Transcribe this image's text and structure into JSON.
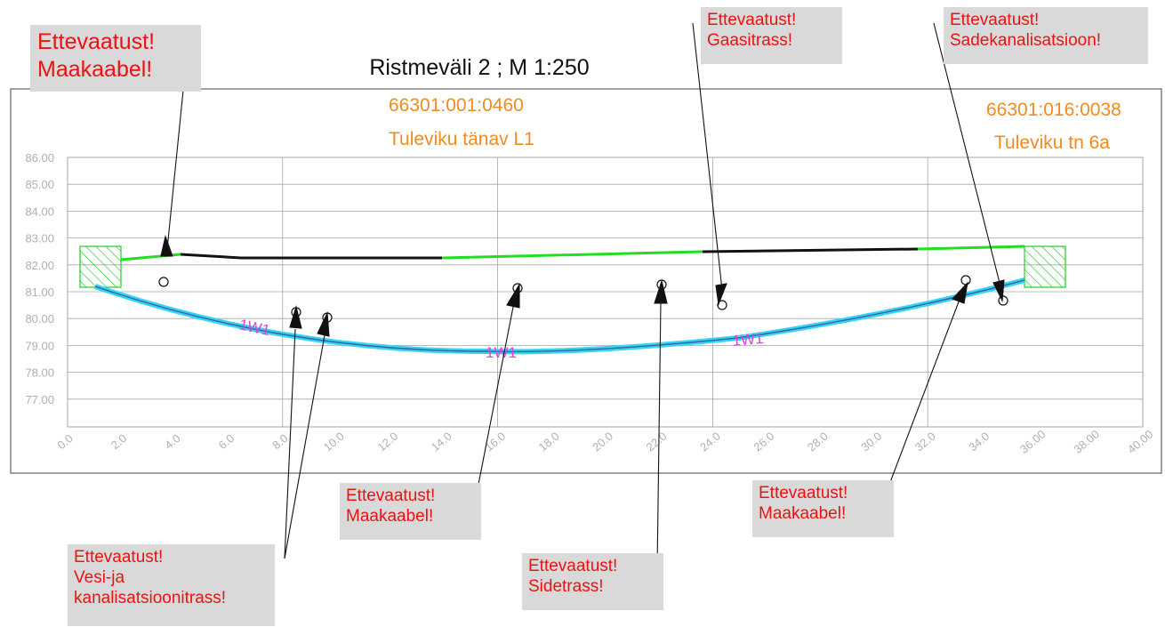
{
  "title": "Ristmeväli 2 ; M 1:250",
  "parcels": [
    {
      "id": "66301:001:0460",
      "street": "Tuleviku tänav L1"
    },
    {
      "id": "66301:016:0038",
      "street": "Tuleviku tn 6a"
    }
  ],
  "pipe_label": "1W1",
  "y_ticks": [
    "86.00",
    "85.00",
    "84.00",
    "83.00",
    "82.00",
    "81.00",
    "80.00",
    "79.00",
    "78.00",
    "77.00"
  ],
  "x_ticks": [
    "0.0",
    "2.0",
    "4.0",
    "6.0",
    "8.0",
    "10.0",
    "12.0",
    "14.0",
    "16.0",
    "18.0",
    "20.0",
    "22.0",
    "24.0",
    "26.0",
    "28.0",
    "30.0",
    "32.0",
    "34.0",
    "36.00",
    "38.00",
    "40.00"
  ],
  "warnings": [
    {
      "id": "maakaabel-top",
      "lines": [
        "Ettevaatust!",
        "Maakaabel!"
      ]
    },
    {
      "id": "gaasitrass",
      "lines": [
        "Ettevaatust!",
        "Gaasitrass!"
      ]
    },
    {
      "id": "sadekanalisatsioon",
      "lines": [
        "Ettevaatust!",
        "Sadekanalisatsioon!"
      ]
    },
    {
      "id": "maakaabel-mid",
      "lines": [
        "Ettevaatust!",
        "Maakaabel!"
      ]
    },
    {
      "id": "maakaabel-right",
      "lines": [
        "Ettevaatust!",
        "Maakaabel!"
      ]
    },
    {
      "id": "vesi-kanalisatsioon",
      "lines": [
        "Ettevaatust!",
        "Vesi-ja",
        "kanalisatsioonitrass!"
      ]
    },
    {
      "id": "sidetrass",
      "lines": [
        "Ettevaatust!",
        "Sidetrass!"
      ]
    }
  ],
  "colors": {
    "warning_text": "#ee1111",
    "warning_bg": "#d9d9d9",
    "parcel_text": "#f28a1f",
    "ground_new": "#22dd22",
    "ground_existing": "#111111",
    "pipe": "#33d6f0",
    "pipe_label": "#e040e0",
    "grid": "#a6a6a6",
    "tick_text": "#b0b0b0"
  }
}
